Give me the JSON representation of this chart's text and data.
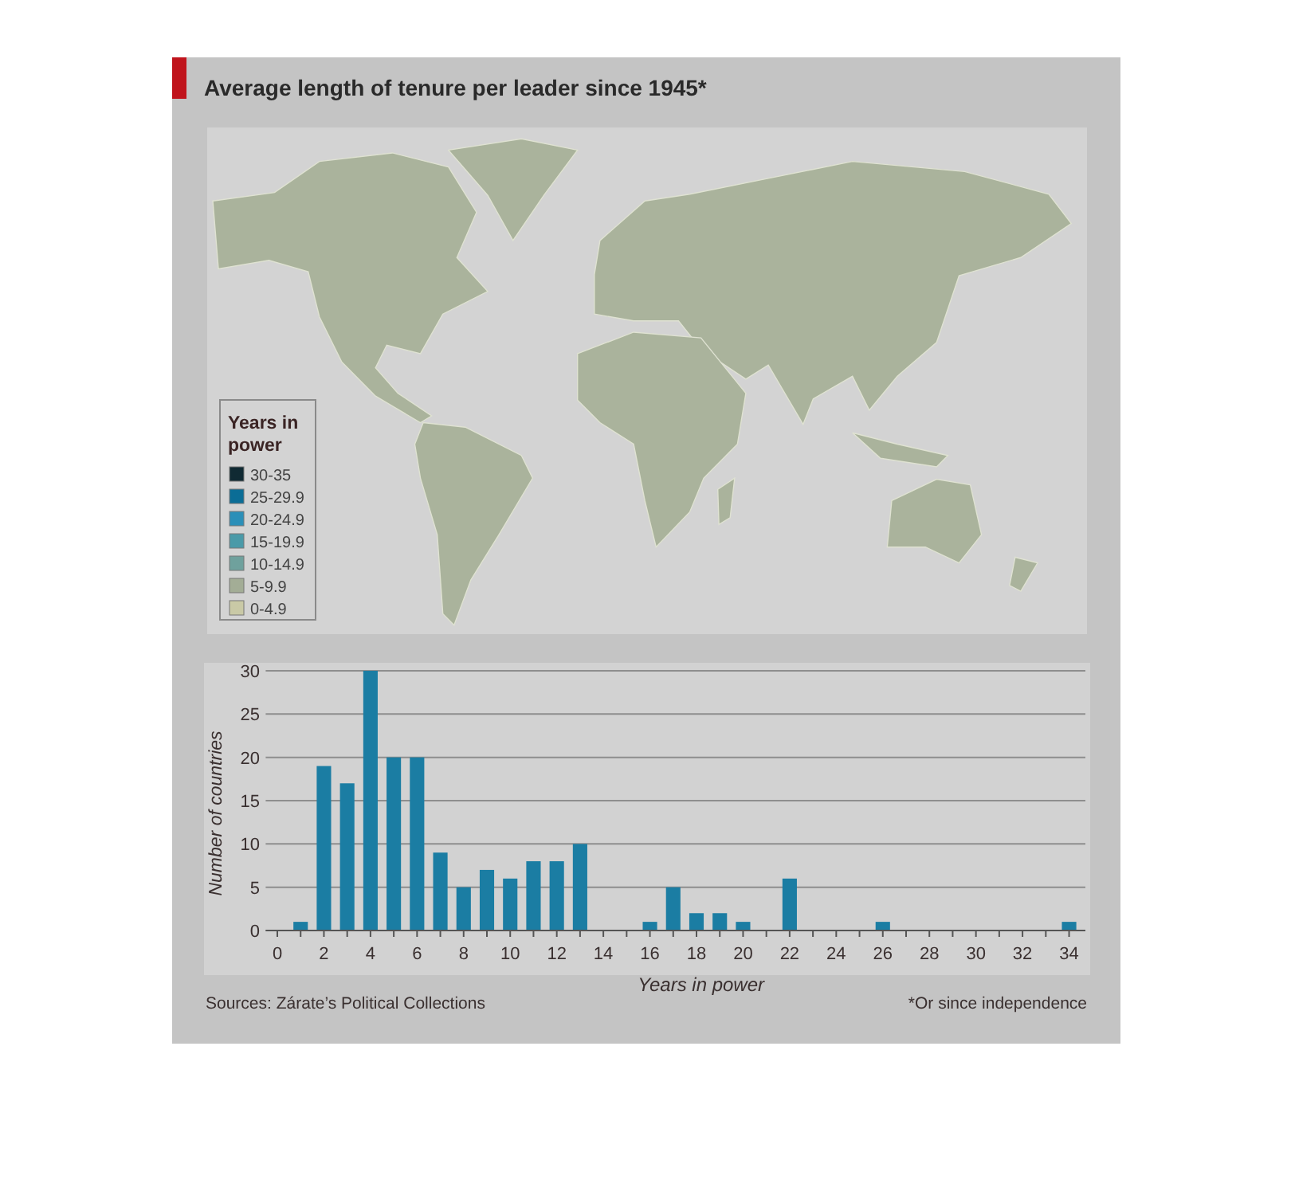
{
  "chart_data": [
    {
      "type": "other",
      "title": "Average length of tenure per leader since 1945*",
      "legend_title": "Years in power",
      "categories": [
        "30-35",
        "25-29.9",
        "20-24.9",
        "15-19.9",
        "10-14.9",
        "5-9.9",
        "0-4.9"
      ],
      "colors": [
        "#102a33",
        "#0b6d96",
        "#2b8fb8",
        "#4a9aa8",
        "#6fa19d",
        "#a3ad96",
        "#c9c9a6"
      ]
    },
    {
      "type": "bar",
      "xlabel": "Years in power",
      "ylabel": "Number of countries",
      "x": [
        1,
        2,
        3,
        4,
        5,
        6,
        7,
        8,
        9,
        10,
        11,
        12,
        13,
        16,
        17,
        18,
        19,
        20,
        22,
        26,
        34
      ],
      "values": [
        1,
        19,
        17,
        30,
        20,
        20,
        9,
        5,
        7,
        6,
        8,
        8,
        10,
        1,
        5,
        2,
        2,
        1,
        6,
        1,
        1
      ],
      "color": "#1b7da3",
      "xlim": [
        -0.5,
        34.7
      ],
      "ylim": [
        0,
        30
      ],
      "yticks": [
        0,
        5,
        10,
        15,
        20,
        25,
        30
      ],
      "xticks": [
        0,
        {
          "value": 1,
          "label": null
        },
        2,
        {
          "value": 3,
          "label": null
        },
        4,
        {
          "value": 5,
          "label": null
        },
        6,
        {
          "value": 7,
          "label": null
        },
        8,
        {
          "value": 9,
          "label": null
        },
        10,
        {
          "value": 11,
          "label": null
        },
        12,
        {
          "value": 13,
          "label": null
        },
        14,
        {
          "value": 15,
          "label": null
        },
        16,
        {
          "value": 17,
          "label": null
        },
        18,
        {
          "value": 19,
          "label": null
        },
        20,
        {
          "value": 21,
          "label": null
        },
        22,
        {
          "value": 23,
          "label": null
        },
        24,
        {
          "value": 25,
          "label": null
        },
        26,
        {
          "value": 27,
          "label": null
        },
        28,
        {
          "value": 29,
          "label": null
        },
        30,
        {
          "value": 31,
          "label": null
        },
        32,
        {
          "value": 33,
          "label": null
        },
        34
      ],
      "grid": "y",
      "annotations": [
        "Sources: Zárate’s Political Collections",
        "*Or since independence"
      ]
    }
  ]
}
